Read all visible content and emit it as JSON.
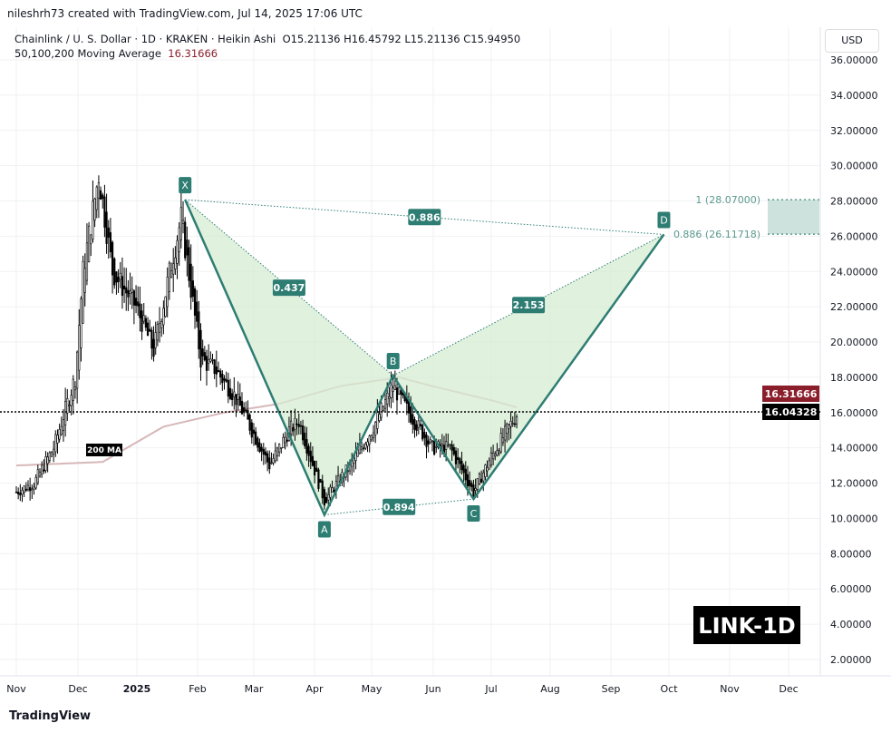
{
  "credit": "nileshrh73 created with TradingView.com, Jul 14, 2025 17:06 UTC",
  "legend": {
    "symbol": "Chainlink / U. S. Dollar · 1D · KRAKEN · Heikin Ashi",
    "ohlc": "O15.21136  H16.45792  L15.21136  C15.94950",
    "ma_label": "50,100,200 Moving Average",
    "ma_value": "16.31666"
  },
  "currency": "USD",
  "watermark": "LINK-1D",
  "brand": "TradingView",
  "ma_tag": "200 MA",
  "colors": {
    "pattern": "#2e7d73",
    "fill": "#d6ecd3",
    "ma": "#d7b7b9",
    "ma_badge": "#8b1e2b",
    "target": "#5d9a8e"
  },
  "chart_data": {
    "type": "candlestick",
    "ylim": [
      1,
      37
    ],
    "yticks": [
      "36.00000",
      "34.00000",
      "32.00000",
      "30.00000",
      "28.00000",
      "26.00000",
      "24.00000",
      "22.00000",
      "20.00000",
      "18.00000",
      "16.00000",
      "14.00000",
      "12.00000",
      "10.00000",
      "8.00000",
      "6.00000",
      "4.00000",
      "2.00000"
    ],
    "xticks": [
      "Nov",
      "Dec",
      "2025",
      "Feb",
      "Mar",
      "Apr",
      "May",
      "Jun",
      "Jul",
      "Aug",
      "Sep",
      "Oct",
      "Nov",
      "Dec"
    ],
    "price_path": [
      [
        "2024-11-01",
        11.5
      ],
      [
        "2024-11-10",
        12
      ],
      [
        "2024-11-20",
        14
      ],
      [
        "2024-12-01",
        18
      ],
      [
        "2024-12-05",
        24
      ],
      [
        "2024-12-13",
        29.5
      ],
      [
        "2024-12-20",
        24
      ],
      [
        "2025-01-01",
        22
      ],
      [
        "2025-01-10",
        19.5
      ],
      [
        "2025-01-20",
        25
      ],
      [
        "2025-01-24",
        27
      ],
      [
        "2025-02-03",
        19
      ],
      [
        "2025-02-10",
        18.5
      ],
      [
        "2025-02-20",
        17
      ],
      [
        "2025-03-01",
        15
      ],
      [
        "2025-03-10",
        13
      ],
      [
        "2025-03-20",
        15
      ],
      [
        "2025-03-25",
        15.5
      ],
      [
        "2025-04-07",
        11
      ],
      [
        "2025-04-20",
        13
      ],
      [
        "2025-05-01",
        15
      ],
      [
        "2025-05-12",
        17.5
      ],
      [
        "2025-05-20",
        16
      ],
      [
        "2025-06-01",
        14
      ],
      [
        "2025-06-10",
        14
      ],
      [
        "2025-06-22",
        11.5
      ],
      [
        "2025-07-01",
        13.5
      ],
      [
        "2025-07-14",
        15.9
      ]
    ],
    "ma200": [
      [
        "2024-11-01",
        13
      ],
      [
        "2024-12-15",
        13.2
      ],
      [
        "2025-01-15",
        15.2
      ],
      [
        "2025-02-15",
        16
      ],
      [
        "2025-03-15",
        16.5
      ],
      [
        "2025-04-15",
        17.5
      ],
      [
        "2025-05-15",
        18
      ],
      [
        "2025-06-01",
        17.5
      ],
      [
        "2025-07-01",
        16.7
      ],
      [
        "2025-07-14",
        16.3
      ]
    ],
    "harmonic": {
      "points": [
        {
          "label": "X",
          "date": "2025-01-26",
          "price": 28.07
        },
        {
          "label": "A",
          "date": "2025-04-07",
          "price": 10.2
        },
        {
          "label": "B",
          "date": "2025-05-12",
          "price": 18.1
        },
        {
          "label": "C",
          "date": "2025-06-22",
          "price": 11.1
        },
        {
          "label": "D",
          "date": "2025-09-27",
          "price": 26.1
        }
      ],
      "ratios": [
        {
          "label": "0.886",
          "between": "X-D"
        },
        {
          "label": "0.437",
          "between": "X-B"
        },
        {
          "label": "2.153",
          "between": "B-D"
        },
        {
          "label": "0.894",
          "between": "A-C"
        }
      ]
    },
    "targets": [
      {
        "label": "1 (28.07000)",
        "price": 28.07
      },
      {
        "label": "0.886 (26.11718)",
        "price": 26.11718
      }
    ],
    "price_badges": [
      {
        "label": "16.31666",
        "price": 16.31666,
        "kind": "ma"
      },
      {
        "label": "16.04328",
        "price": 16.04328,
        "kind": "last"
      }
    ]
  }
}
